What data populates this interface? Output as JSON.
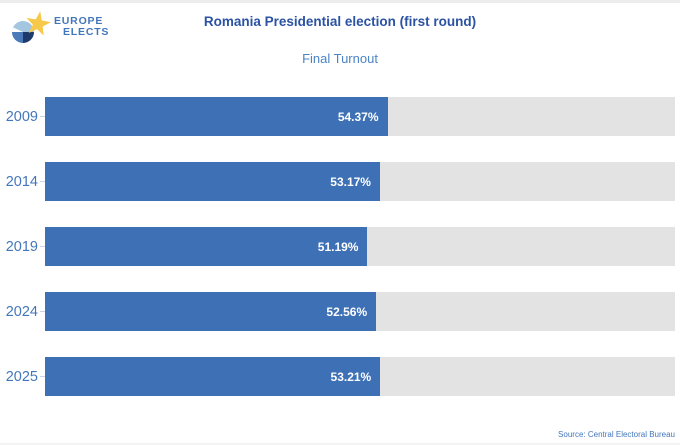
{
  "logo": {
    "line1": "EUROPE",
    "line2": "ELECTS",
    "colors": {
      "star": "#f6c94b",
      "pie_light": "#a5c6e0",
      "pie_mid": "#4a7ab8",
      "pie_dark": "#1e3a6a",
      "pie_white": "#ffffff",
      "text": "#4377bb"
    }
  },
  "header": {
    "title": "Romania Presidential election (first round)",
    "subtitle": "Final Turnout"
  },
  "chart_data": {
    "type": "bar",
    "orientation": "horizontal",
    "title": "Romania Presidential election (first round)",
    "subtitle": "Final Turnout",
    "categories": [
      "2009",
      "2014",
      "2019",
      "2024",
      "2025"
    ],
    "values": [
      54.37,
      53.17,
      51.19,
      52.56,
      53.21
    ],
    "value_labels": [
      "54.37%",
      "53.17%",
      "51.19%",
      "52.56%",
      "53.21%"
    ],
    "xlim": [
      0,
      100
    ],
    "grid": false,
    "legend": false,
    "colors": {
      "bar": "#3e70b6",
      "track": "#e3e3e3",
      "value_label": "#ffffff",
      "category_label": "#4377bb",
      "title": "#2b52a3",
      "subtitle": "#4b84c4"
    }
  },
  "footer": {
    "source": "Source: Central Electoral Bureau"
  }
}
